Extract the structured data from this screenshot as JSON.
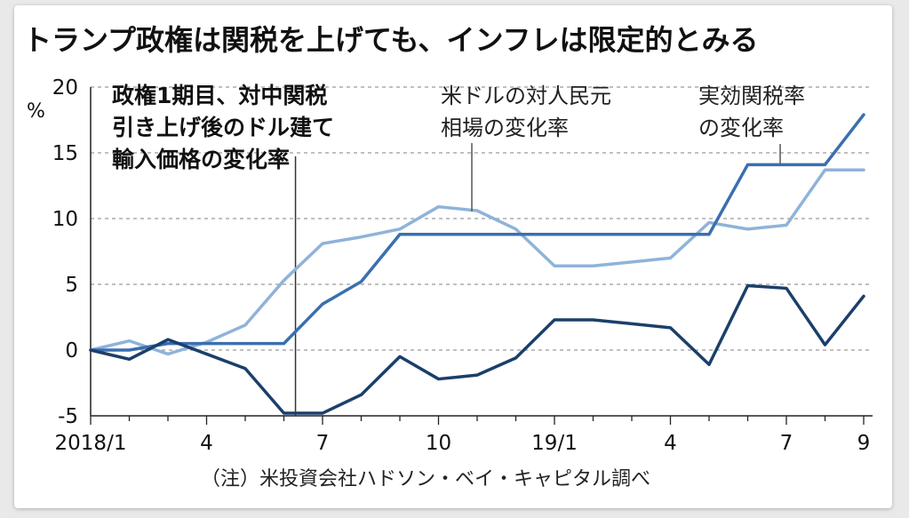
{
  "chart_data": {
    "type": "line",
    "title": "トランプ政権は関税を上げても、インフレは限定的とみる",
    "ylabel_unit": "%",
    "ylim": [
      -5,
      20
    ],
    "yticks": [
      20,
      15,
      10,
      5,
      0,
      -5
    ],
    "ytick_labels": [
      "20",
      "15",
      "10",
      "5",
      "0",
      "-5"
    ],
    "x": [
      0,
      1,
      2,
      3,
      4,
      5,
      6,
      7,
      8,
      9,
      10,
      11,
      12,
      13,
      14,
      15,
      16,
      17,
      18,
      19,
      20
    ],
    "xtick_positions": [
      0,
      3,
      6,
      9,
      12,
      15,
      18,
      20
    ],
    "xtick_labels": [
      "2018/1",
      "4",
      "7",
      "10",
      "19/1",
      "4",
      "7",
      "9"
    ],
    "event_x": 5.3,
    "grid": "horizontal-dashed",
    "series": [
      {
        "name": "米ドルの対人民元相場の変化率",
        "label_lines": [
          "米ドルの対人民元",
          "相場の変化率"
        ],
        "color": "#8fb3d9",
        "values": [
          0,
          0.7,
          -0.3,
          0.6,
          1.9,
          5.3,
          8.1,
          8.6,
          9.2,
          10.9,
          10.6,
          9.2,
          6.4,
          6.4,
          6.7,
          7.0,
          9.7,
          9.2,
          9.5,
          13.7,
          13.7
        ]
      },
      {
        "name": "実効関税率の変化率",
        "label_lines": [
          "実効関税率",
          "の変化率"
        ],
        "color": "#3a6fb0",
        "values": [
          0,
          0,
          0.5,
          0.5,
          0.5,
          0.5,
          3.5,
          5.2,
          8.8,
          8.8,
          8.8,
          8.8,
          8.8,
          8.8,
          8.8,
          8.8,
          8.8,
          14.1,
          14.1,
          14.1,
          17.9
        ]
      },
      {
        "name": "政権1期目、対中関税引き上げ後のドル建て輸入価格の変化率",
        "label_lines": [
          "政権1期目、対中関税",
          "引き上げ後のドル建て",
          "輸入価格の変化率"
        ],
        "color": "#1b3f6b",
        "values": [
          0,
          -0.7,
          0.8,
          -0.3,
          -1.4,
          -4.8,
          -4.8,
          -3.4,
          -0.5,
          -2.2,
          -1.9,
          -0.6,
          2.3,
          2.3,
          2.0,
          1.7,
          -1.1,
          4.9,
          4.7,
          0.4,
          4.1
        ]
      }
    ],
    "note": "（注）米投資会社ハドソン・ベイ・キャピタル調べ"
  }
}
